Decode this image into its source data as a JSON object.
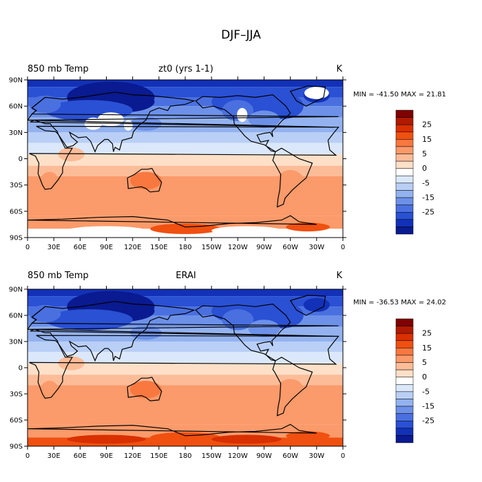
{
  "figure_title": "DJF–JJA",
  "colorbar": {
    "labels": [
      "25",
      "15",
      "5",
      "0",
      "-5",
      "-15",
      "-25"
    ],
    "colors": [
      "#7f0000",
      "#b01a00",
      "#d93000",
      "#f05010",
      "#f87840",
      "#fb9a6a",
      "#fdbc98",
      "#fee0c8",
      "#ffffff",
      "#dbe8fb",
      "#b9cff6",
      "#93b2ef",
      "#6d91e8",
      "#4a70e0",
      "#2a50d4",
      "#1231b8",
      "#0a1a90"
    ]
  },
  "x_ticks": [
    "0",
    "30E",
    "60E",
    "90E",
    "120E",
    "150E",
    "180",
    "150W",
    "120W",
    "90W",
    "60W",
    "30W",
    "0"
  ],
  "y_ticks": [
    "90N",
    "60N",
    "30N",
    "0",
    "30S",
    "60S",
    "90S"
  ],
  "panels": [
    {
      "left_title": "850 mb Temp",
      "center_title": "zt0 (yrs 1-1)",
      "units": "K",
      "stats": "MIN = -41.50  MAX =  21.81"
    },
    {
      "left_title": "850 mb Temp",
      "center_title": "ERAI",
      "units": "K",
      "stats": "MIN = -36.53  MAX =  24.02"
    }
  ]
}
